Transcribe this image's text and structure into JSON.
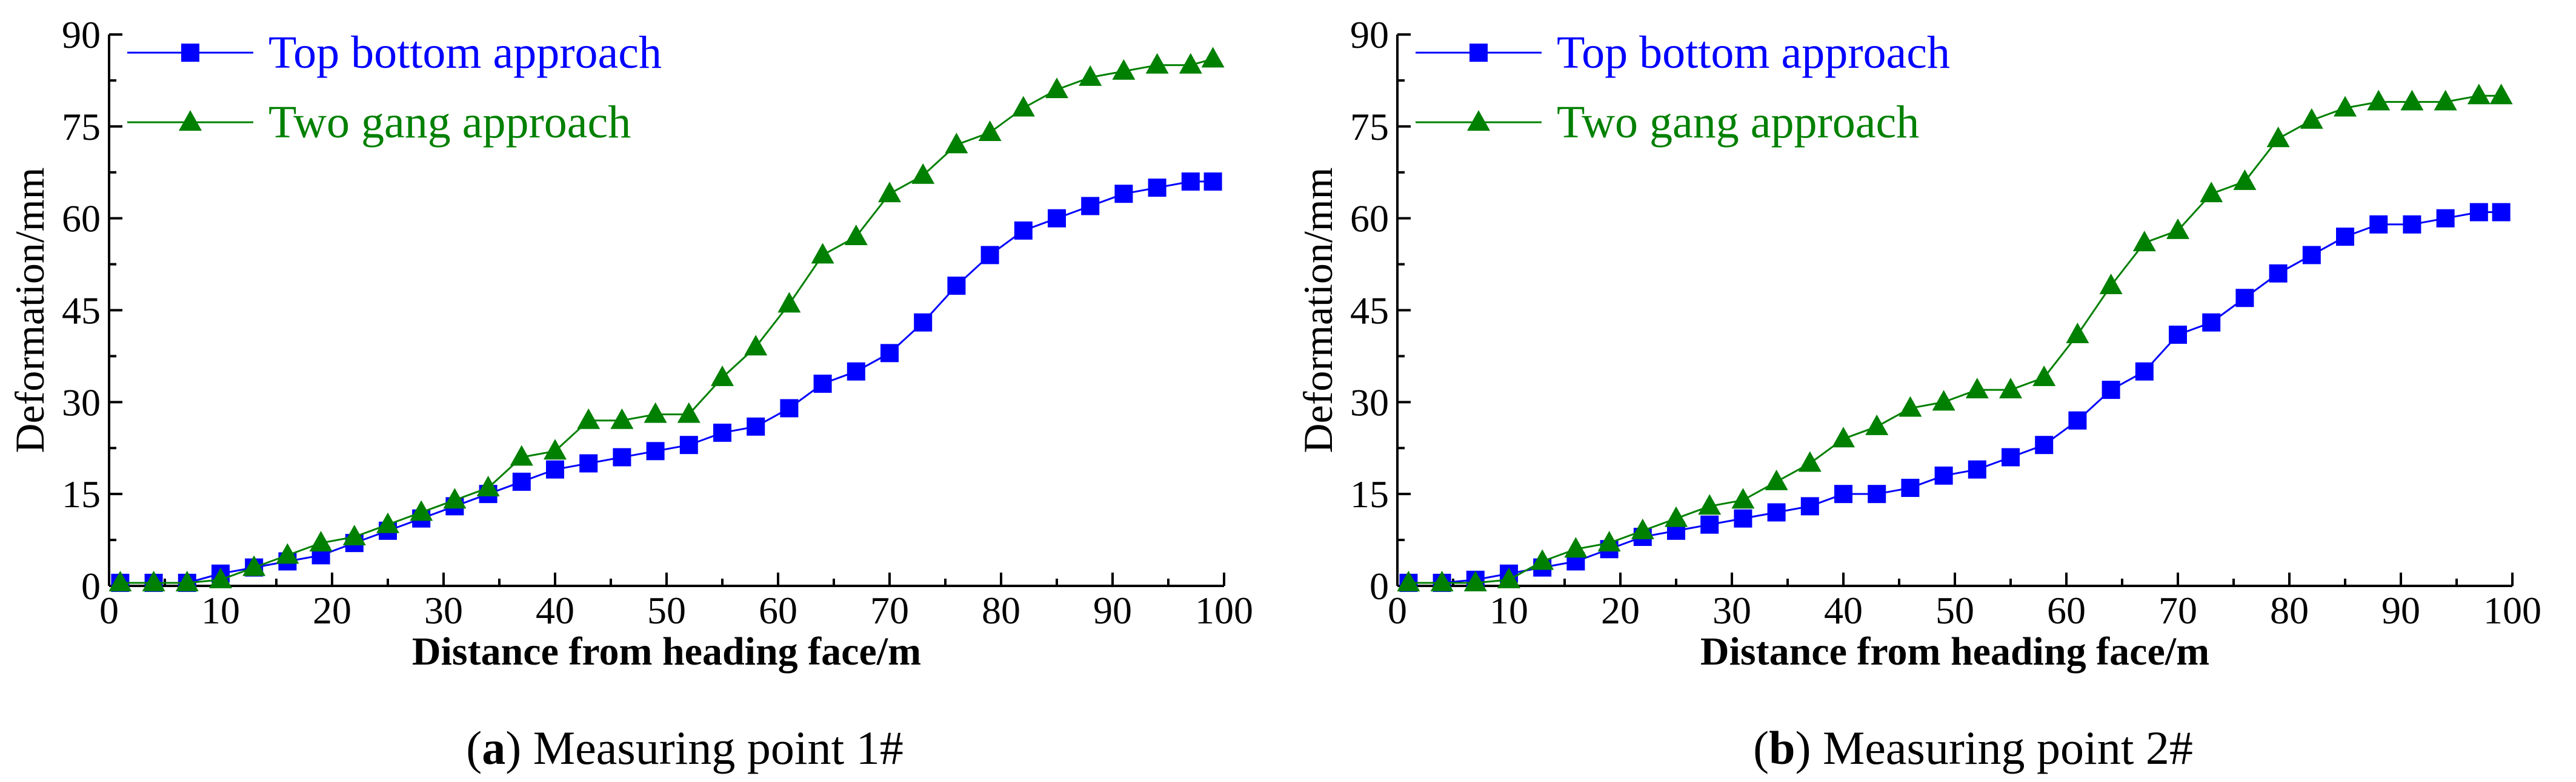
{
  "colors": {
    "top_bottom": "#0000ff",
    "two_gang": "#008000",
    "axis": "#000000"
  },
  "chart_data": [
    {
      "type": "line",
      "caption": {
        "letter": "a",
        "open": "(",
        "close": ")",
        "text": " Measuring point 1#"
      },
      "xlabel": "Distance from heading face/m",
      "ylabel": "Deformation/mm",
      "xlim": [
        0,
        100
      ],
      "ylim": [
        0,
        90
      ],
      "xticks": [
        0,
        10,
        20,
        30,
        40,
        50,
        60,
        70,
        80,
        90,
        100
      ],
      "yticks": [
        0,
        15,
        30,
        45,
        60,
        75,
        90
      ],
      "legend_position": "top-left",
      "series": [
        {
          "name": "Top bottom approach",
          "marker": "square",
          "color": "#0000ff",
          "x": [
            1,
            4,
            7,
            10,
            13,
            16,
            19,
            22,
            25,
            28,
            31,
            34,
            37,
            40,
            43,
            46,
            49,
            52,
            55,
            58,
            61,
            64,
            67,
            70,
            73,
            76,
            79,
            82,
            85,
            88,
            91,
            94,
            97,
            99
          ],
          "y": [
            0.5,
            0.5,
            0.5,
            2,
            3,
            4,
            5,
            7,
            9,
            11,
            13,
            15,
            17,
            19,
            20,
            21,
            22,
            23,
            25,
            26,
            29,
            33,
            35,
            38,
            43,
            49,
            54,
            58,
            60,
            62,
            64,
            65,
            66,
            66
          ]
        },
        {
          "name": "Two gang approach",
          "marker": "triangle",
          "color": "#008000",
          "x": [
            1,
            4,
            7,
            10,
            13,
            16,
            19,
            22,
            25,
            28,
            31,
            34,
            37,
            40,
            43,
            46,
            49,
            52,
            55,
            58,
            61,
            64,
            67,
            70,
            73,
            76,
            79,
            82,
            85,
            88,
            91,
            94,
            97,
            99
          ],
          "y": [
            0.5,
            0.5,
            0.5,
            1,
            3,
            5,
            7,
            8,
            10,
            12,
            14,
            16,
            21,
            22,
            27,
            27,
            28,
            28,
            34,
            39,
            46,
            54,
            57,
            64,
            67,
            72,
            74,
            78,
            81,
            83,
            84,
            85,
            85,
            86
          ]
        }
      ]
    },
    {
      "type": "line",
      "caption": {
        "letter": "b",
        "open": "(",
        "close": ")",
        "text": " Measuring point 2#"
      },
      "xlabel": "Distance from heading face/m",
      "ylabel": "Deformation/mm",
      "xlim": [
        0,
        100
      ],
      "ylim": [
        0,
        90
      ],
      "xticks": [
        0,
        10,
        20,
        30,
        40,
        50,
        60,
        70,
        80,
        90,
        100
      ],
      "yticks": [
        0,
        15,
        30,
        45,
        60,
        75,
        90
      ],
      "legend_position": "top-left",
      "series": [
        {
          "name": "Top bottom approach",
          "marker": "square",
          "color": "#0000ff",
          "x": [
            1,
            4,
            7,
            10,
            13,
            16,
            19,
            22,
            25,
            28,
            31,
            34,
            37,
            40,
            43,
            46,
            49,
            52,
            55,
            58,
            61,
            64,
            67,
            70,
            73,
            76,
            79,
            82,
            85,
            88,
            91,
            94,
            97,
            99
          ],
          "y": [
            0.5,
            0.5,
            1,
            2,
            3,
            4,
            6,
            8,
            9,
            10,
            11,
            12,
            13,
            15,
            15,
            16,
            18,
            19,
            21,
            23,
            27,
            32,
            35,
            41,
            43,
            47,
            51,
            54,
            57,
            59,
            59,
            60,
            61,
            61
          ]
        },
        {
          "name": "Two gang approach",
          "marker": "triangle",
          "color": "#008000",
          "x": [
            1,
            4,
            7,
            10,
            13,
            16,
            19,
            22,
            25,
            28,
            31,
            34,
            37,
            40,
            43,
            46,
            49,
            52,
            55,
            58,
            61,
            64,
            67,
            70,
            73,
            76,
            79,
            82,
            85,
            88,
            91,
            94,
            97,
            99
          ],
          "y": [
            0.5,
            0.5,
            0.5,
            1,
            4,
            6,
            7,
            9,
            11,
            13,
            14,
            17,
            20,
            24,
            26,
            29,
            30,
            32,
            32,
            34,
            41,
            49,
            56,
            58,
            64,
            66,
            73,
            76,
            78,
            79,
            79,
            79,
            80,
            80
          ]
        }
      ]
    }
  ]
}
